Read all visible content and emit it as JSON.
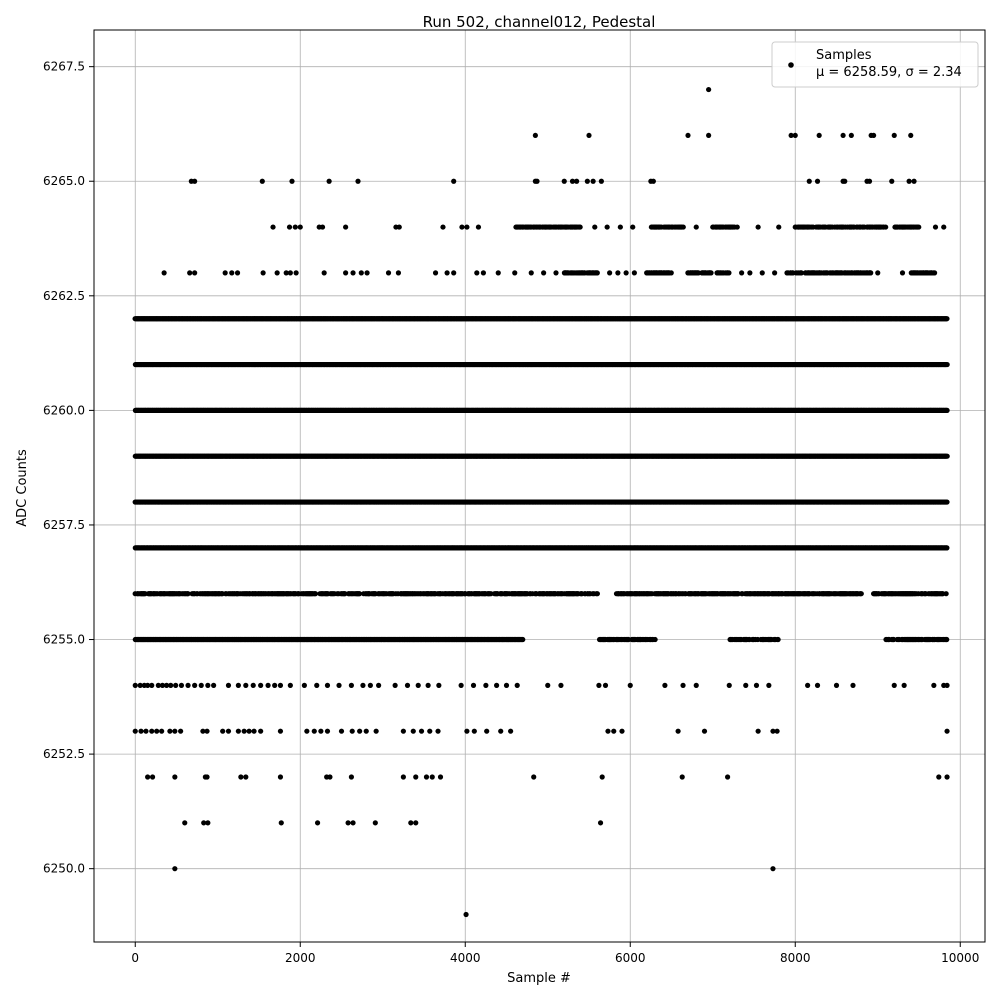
{
  "chart_data": {
    "type": "scatter",
    "title": "Run 502, channel012, Pedestal",
    "xlabel": "Sample #",
    "ylabel": "ADC Counts",
    "xlim": [
      -500,
      10300
    ],
    "ylim": [
      6248.4,
      6268.3
    ],
    "x_ticks": [
      0,
      2000,
      4000,
      6000,
      8000,
      10000
    ],
    "y_ticks": [
      6250.0,
      6252.5,
      6255.0,
      6257.5,
      6260.0,
      6262.5,
      6265.0,
      6267.5
    ],
    "x_tick_labels": [
      "0",
      "2000",
      "4000",
      "6000",
      "8000",
      "10000"
    ],
    "y_tick_labels": [
      "6250.0",
      "6252.5",
      "6255.0",
      "6257.5",
      "6260.0",
      "6262.5",
      "6265.0",
      "6267.5"
    ],
    "grid": true,
    "legend": {
      "position": "top-right",
      "entries": [
        {
          "name": "Samples",
          "stats": "μ = 6258.59, σ = 2.34"
        }
      ]
    },
    "series": [
      {
        "name": "Samples",
        "color": "#000000",
        "n_samples": 9850,
        "mean": 6258.59,
        "sigma": 2.34,
        "dense_levels": [
          {
            "y": 6255,
            "x_ranges": [
              [
                0,
                4700
              ],
              [
                5620,
                6300
              ],
              [
                7200,
                7800
              ],
              [
                9100,
                9840
              ]
            ]
          },
          {
            "y": 6256,
            "x_ranges": [
              [
                0,
                4000
              ],
              [
                4000,
                5600
              ],
              [
                5800,
                7800
              ],
              [
                7800,
                8800
              ],
              [
                8950,
                9840
              ]
            ]
          },
          {
            "y": 6257,
            "x_ranges": [
              [
                0,
                9840
              ]
            ]
          },
          {
            "y": 6258,
            "x_ranges": [
              [
                0,
                9840
              ]
            ]
          },
          {
            "y": 6259,
            "x_ranges": [
              [
                0,
                9840
              ]
            ]
          },
          {
            "y": 6260,
            "x_ranges": [
              [
                0,
                9840
              ]
            ]
          },
          {
            "y": 6261,
            "x_ranges": [
              [
                0,
                9840
              ]
            ]
          },
          {
            "y": 6262,
            "x_ranges": [
              [
                0,
                9840
              ]
            ]
          },
          {
            "y": 6263,
            "x_ranges": [
              [
                5200,
                5600
              ],
              [
                6200,
                6500
              ],
              [
                6700,
                7200
              ],
              [
                7900,
                8950
              ],
              [
                9400,
                9700
              ]
            ]
          },
          {
            "y": 6264,
            "x_ranges": [
              [
                4600,
                5400
              ],
              [
                6250,
                6650
              ],
              [
                7000,
                7300
              ],
              [
                8000,
                9100
              ],
              [
                9200,
                9500
              ]
            ]
          }
        ],
        "sparse_points": [
          [
            0,
            6254
          ],
          [
            60,
            6254
          ],
          [
            110,
            6254
          ],
          [
            150,
            6254
          ],
          [
            200,
            6254
          ],
          [
            280,
            6254
          ],
          [
            330,
            6254
          ],
          [
            380,
            6254
          ],
          [
            430,
            6254
          ],
          [
            490,
            6254
          ],
          [
            560,
            6254
          ],
          [
            640,
            6254
          ],
          [
            720,
            6254
          ],
          [
            800,
            6254
          ],
          [
            880,
            6254
          ],
          [
            950,
            6254
          ],
          [
            1130,
            6254
          ],
          [
            1250,
            6254
          ],
          [
            1340,
            6254
          ],
          [
            1430,
            6254
          ],
          [
            1520,
            6254
          ],
          [
            1610,
            6254
          ],
          [
            1690,
            6254
          ],
          [
            1760,
            6254
          ],
          [
            1880,
            6254
          ],
          [
            2050,
            6254
          ],
          [
            2200,
            6254
          ],
          [
            2330,
            6254
          ],
          [
            2470,
            6254
          ],
          [
            2620,
            6254
          ],
          [
            2760,
            6254
          ],
          [
            2850,
            6254
          ],
          [
            2950,
            6254
          ],
          [
            3150,
            6254
          ],
          [
            3300,
            6254
          ],
          [
            3430,
            6254
          ],
          [
            3550,
            6254
          ],
          [
            3680,
            6254
          ],
          [
            3950,
            6254
          ],
          [
            4100,
            6254
          ],
          [
            4250,
            6254
          ],
          [
            4380,
            6254
          ],
          [
            4500,
            6254
          ],
          [
            4630,
            6254
          ],
          [
            5000,
            6254
          ],
          [
            5160,
            6254
          ],
          [
            5620,
            6254
          ],
          [
            5700,
            6254
          ],
          [
            6000,
            6254
          ],
          [
            6420,
            6254
          ],
          [
            6640,
            6254
          ],
          [
            6800,
            6254
          ],
          [
            7200,
            6254
          ],
          [
            7400,
            6254
          ],
          [
            7530,
            6254
          ],
          [
            7680,
            6254
          ],
          [
            8150,
            6254
          ],
          [
            8270,
            6254
          ],
          [
            8500,
            6254
          ],
          [
            8700,
            6254
          ],
          [
            9200,
            6254
          ],
          [
            9320,
            6254
          ],
          [
            9680,
            6254
          ],
          [
            9800,
            6254
          ],
          [
            9840,
            6254
          ],
          [
            0,
            6253
          ],
          [
            70,
            6253
          ],
          [
            130,
            6253
          ],
          [
            200,
            6253
          ],
          [
            260,
            6253
          ],
          [
            320,
            6253
          ],
          [
            420,
            6253
          ],
          [
            480,
            6253
          ],
          [
            550,
            6253
          ],
          [
            820,
            6253
          ],
          [
            870,
            6253
          ],
          [
            1060,
            6253
          ],
          [
            1130,
            6253
          ],
          [
            1250,
            6253
          ],
          [
            1320,
            6253
          ],
          [
            1380,
            6253
          ],
          [
            1440,
            6253
          ],
          [
            1520,
            6253
          ],
          [
            1760,
            6253
          ],
          [
            2080,
            6253
          ],
          [
            2170,
            6253
          ],
          [
            2250,
            6253
          ],
          [
            2330,
            6253
          ],
          [
            2500,
            6253
          ],
          [
            2630,
            6253
          ],
          [
            2720,
            6253
          ],
          [
            2800,
            6253
          ],
          [
            2920,
            6253
          ],
          [
            3250,
            6253
          ],
          [
            3370,
            6253
          ],
          [
            3470,
            6253
          ],
          [
            3570,
            6253
          ],
          [
            3670,
            6253
          ],
          [
            4020,
            6253
          ],
          [
            4110,
            6253
          ],
          [
            4260,
            6253
          ],
          [
            4430,
            6253
          ],
          [
            4550,
            6253
          ],
          [
            5730,
            6253
          ],
          [
            5800,
            6253
          ],
          [
            5900,
            6253
          ],
          [
            6580,
            6253
          ],
          [
            6900,
            6253
          ],
          [
            7550,
            6253
          ],
          [
            7730,
            6253
          ],
          [
            7780,
            6253
          ],
          [
            9840,
            6253
          ],
          [
            150,
            6252
          ],
          [
            210,
            6252
          ],
          [
            480,
            6252
          ],
          [
            850,
            6252
          ],
          [
            870,
            6252
          ],
          [
            1280,
            6252
          ],
          [
            1340,
            6252
          ],
          [
            1760,
            6252
          ],
          [
            2320,
            6252
          ],
          [
            2360,
            6252
          ],
          [
            2620,
            6252
          ],
          [
            3250,
            6252
          ],
          [
            3400,
            6252
          ],
          [
            3530,
            6252
          ],
          [
            3600,
            6252
          ],
          [
            3700,
            6252
          ],
          [
            4830,
            6252
          ],
          [
            5660,
            6252
          ],
          [
            6630,
            6252
          ],
          [
            7180,
            6252
          ],
          [
            9740,
            6252
          ],
          [
            9840,
            6252
          ],
          [
            600,
            6251
          ],
          [
            830,
            6251
          ],
          [
            880,
            6251
          ],
          [
            1770,
            6251
          ],
          [
            2210,
            6251
          ],
          [
            2580,
            6251
          ],
          [
            2640,
            6251
          ],
          [
            2910,
            6251
          ],
          [
            3340,
            6251
          ],
          [
            3400,
            6251
          ],
          [
            5640,
            6251
          ],
          [
            480,
            6250
          ],
          [
            7730,
            6250
          ],
          [
            4010,
            6249
          ],
          [
            350,
            6263
          ],
          [
            660,
            6263
          ],
          [
            720,
            6263
          ],
          [
            1090,
            6263
          ],
          [
            1170,
            6263
          ],
          [
            1240,
            6263
          ],
          [
            1550,
            6263
          ],
          [
            1720,
            6263
          ],
          [
            1830,
            6263
          ],
          [
            1880,
            6263
          ],
          [
            1950,
            6263
          ],
          [
            2290,
            6263
          ],
          [
            2550,
            6263
          ],
          [
            2640,
            6263
          ],
          [
            2740,
            6263
          ],
          [
            2810,
            6263
          ],
          [
            3070,
            6263
          ],
          [
            3190,
            6263
          ],
          [
            3640,
            6263
          ],
          [
            3780,
            6263
          ],
          [
            3860,
            6263
          ],
          [
            4140,
            6263
          ],
          [
            4220,
            6263
          ],
          [
            4400,
            6263
          ],
          [
            4600,
            6263
          ],
          [
            4800,
            6263
          ],
          [
            4950,
            6263
          ],
          [
            5100,
            6263
          ],
          [
            5750,
            6263
          ],
          [
            5850,
            6263
          ],
          [
            5950,
            6263
          ],
          [
            6050,
            6263
          ],
          [
            7350,
            6263
          ],
          [
            7450,
            6263
          ],
          [
            7600,
            6263
          ],
          [
            7750,
            6263
          ],
          [
            9000,
            6263
          ],
          [
            9300,
            6263
          ],
          [
            1670,
            6264
          ],
          [
            1870,
            6264
          ],
          [
            1940,
            6264
          ],
          [
            2000,
            6264
          ],
          [
            2230,
            6264
          ],
          [
            2270,
            6264
          ],
          [
            2550,
            6264
          ],
          [
            3160,
            6264
          ],
          [
            3200,
            6264
          ],
          [
            3730,
            6264
          ],
          [
            3960,
            6264
          ],
          [
            4020,
            6264
          ],
          [
            4160,
            6264
          ],
          [
            5570,
            6264
          ],
          [
            5720,
            6264
          ],
          [
            5880,
            6264
          ],
          [
            6030,
            6264
          ],
          [
            6800,
            6264
          ],
          [
            7550,
            6264
          ],
          [
            7800,
            6264
          ],
          [
            9700,
            6264
          ],
          [
            9800,
            6264
          ],
          [
            680,
            6265
          ],
          [
            720,
            6265
          ],
          [
            1540,
            6265
          ],
          [
            1900,
            6265
          ],
          [
            2350,
            6265
          ],
          [
            2700,
            6265
          ],
          [
            3860,
            6265
          ],
          [
            4850,
            6265
          ],
          [
            4870,
            6265
          ],
          [
            5200,
            6265
          ],
          [
            5300,
            6265
          ],
          [
            5350,
            6265
          ],
          [
            5480,
            6265
          ],
          [
            5550,
            6265
          ],
          [
            5650,
            6265
          ],
          [
            6250,
            6265
          ],
          [
            6280,
            6265
          ],
          [
            8170,
            6265
          ],
          [
            8270,
            6265
          ],
          [
            8580,
            6265
          ],
          [
            8600,
            6265
          ],
          [
            8870,
            6265
          ],
          [
            8900,
            6265
          ],
          [
            9170,
            6265
          ],
          [
            9380,
            6265
          ],
          [
            9440,
            6265
          ],
          [
            4850,
            6266
          ],
          [
            5500,
            6266
          ],
          [
            6700,
            6266
          ],
          [
            6950,
            6266
          ],
          [
            7950,
            6266
          ],
          [
            8000,
            6266
          ],
          [
            8290,
            6266
          ],
          [
            8580,
            6266
          ],
          [
            8680,
            6266
          ],
          [
            8920,
            6266
          ],
          [
            8950,
            6266
          ],
          [
            9200,
            6266
          ],
          [
            9400,
            6266
          ],
          [
            6950,
            6267
          ]
        ]
      }
    ]
  }
}
